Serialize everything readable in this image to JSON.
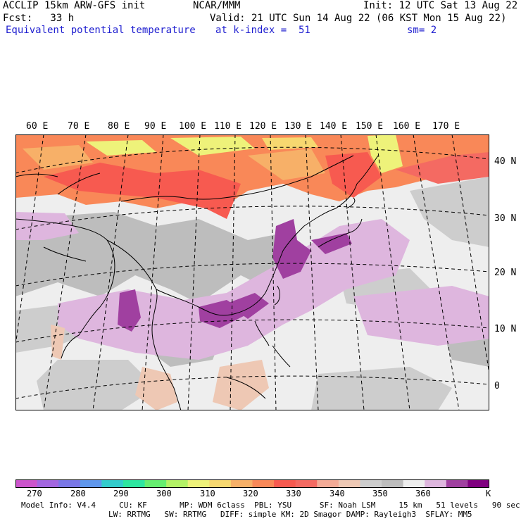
{
  "header": {
    "model": "ACCLIP 15km ARW-GFS init",
    "org": "NCAR/MMM",
    "init": "Init: 12 UTC Sat 13 Aug 22",
    "fcst": "Fcst:   33 h",
    "valid": "Valid: 21 UTC Sun 14 Aug 22 (06 KST Mon 15 Aug 22)",
    "field": "Equivalent potential temperature",
    "level": "at k-index =  51",
    "smooth": "sm= 2"
  },
  "map": {
    "lon_labels": [
      "60 E",
      "70 E",
      "80 E",
      "90 E",
      "100 E",
      "110 E",
      "120 E",
      "130 E",
      "140 E",
      "150 E",
      "160 E",
      "170 E"
    ],
    "lat_labels": [
      "40 N",
      "30 N",
      "20 N",
      "10 N",
      "0"
    ]
  },
  "colorbar": {
    "colors": [
      "#cc55cc",
      "#a366e0",
      "#7a77e6",
      "#5f97ec",
      "#33cccc",
      "#2ee6a0",
      "#66ee70",
      "#b3f266",
      "#eef27a",
      "#f7d870",
      "#f7b068",
      "#f98858",
      "#f75a50",
      "#f46a62",
      "#f3aa96",
      "#eec8b4",
      "#cdcdcd",
      "#bdbdbd",
      "#eeeeee",
      "#deb6de",
      "#a040a0",
      "#800080"
    ],
    "labels": [
      "270",
      "280",
      "290",
      "300",
      "310",
      "320",
      "330",
      "340",
      "350",
      "360"
    ],
    "unit": "K"
  },
  "footer": {
    "line1": "Model Info: V4.4     CU: KF       MP: WDM 6class  PBL: YSU      SF: Noah LSM     15 km   51 levels   90 sec",
    "line2": "LW: RRTMG   SW: RRTMG   DIFF: simple KM: 2D Smagor DAMP: Rayleigh3  SFLAY: MM5"
  }
}
